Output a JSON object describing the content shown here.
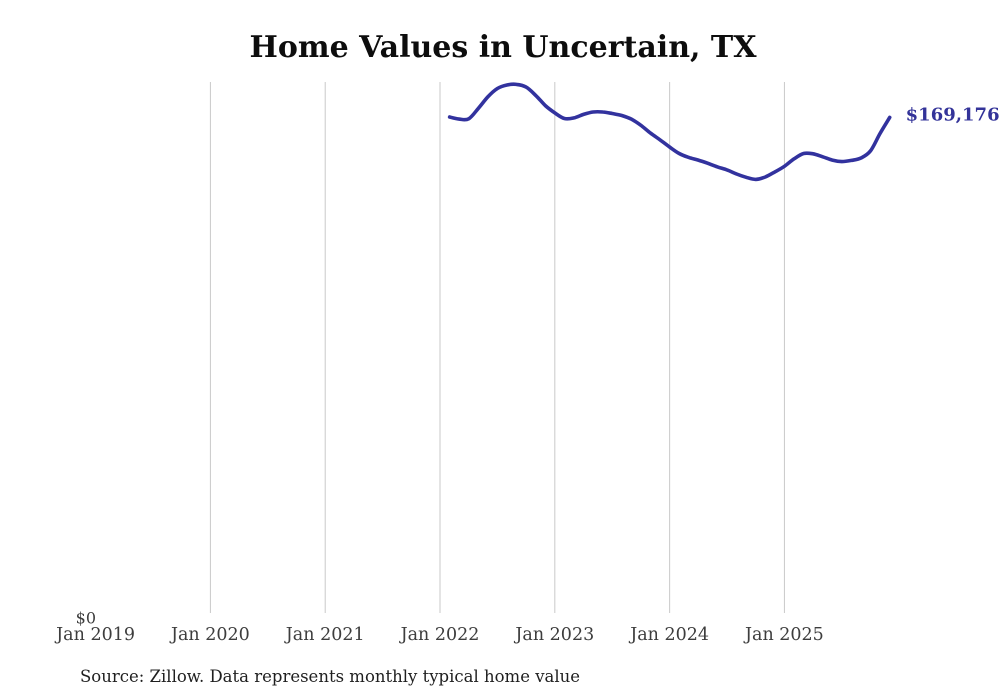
{
  "title": "Home Values in Uncertain, TX",
  "source_note": "Source: Zillow. Data represents monthly typical home value",
  "y_zero_label": "$0",
  "end_value_label": "$169,176",
  "colors": {
    "line": "#32329e",
    "end_label": "#333399",
    "gridline": "#c9c9c9",
    "axis_text": "#3d3d3d",
    "title_text": "#0d0d0d"
  },
  "x_axis": {
    "ticks": [
      {
        "label": "Jan 2019",
        "month": "2019-01",
        "gridline": false
      },
      {
        "label": "Jan 2020",
        "month": "2020-01",
        "gridline": true
      },
      {
        "label": "Jan 2021",
        "month": "2021-01",
        "gridline": true
      },
      {
        "label": "Jan 2022",
        "month": "2022-01",
        "gridline": true
      },
      {
        "label": "Jan 2023",
        "month": "2023-01",
        "gridline": true
      },
      {
        "label": "Jan 2024",
        "month": "2024-01",
        "gridline": true
      },
      {
        "label": "Jan 2025",
        "month": "2025-01",
        "gridline": true
      }
    ]
  },
  "chart_data": {
    "type": "line",
    "title": "Home Values in Uncertain, TX",
    "series_name": "Monthly typical home value ($)",
    "xlabel": "",
    "ylabel": "",
    "ylim": [
      0,
      180500
    ],
    "grid": "vertical-only",
    "legend": "none",
    "x": [
      "2022-02",
      "2022-03",
      "2022-04",
      "2022-05",
      "2022-06",
      "2022-07",
      "2022-08",
      "2022-09",
      "2022-10",
      "2022-11",
      "2022-12",
      "2023-01",
      "2023-02",
      "2023-03",
      "2023-04",
      "2023-05",
      "2023-06",
      "2023-07",
      "2023-08",
      "2023-09",
      "2023-10",
      "2023-11",
      "2023-12",
      "2024-01",
      "2024-02",
      "2024-03",
      "2024-04",
      "2024-05",
      "2024-06",
      "2024-07",
      "2024-08",
      "2024-09",
      "2024-10",
      "2024-11",
      "2024-12",
      "2025-01",
      "2025-02",
      "2025-03",
      "2025-04",
      "2025-05",
      "2025-06",
      "2025-07",
      "2025-08",
      "2025-09",
      "2025-10",
      "2025-11",
      "2025-12"
    ],
    "values": [
      169300,
      168600,
      168700,
      172200,
      176100,
      178900,
      180100,
      180300,
      179400,
      176600,
      173200,
      170700,
      168800,
      169000,
      170200,
      171000,
      171000,
      170500,
      169800,
      168600,
      166500,
      163900,
      161600,
      159200,
      157000,
      155700,
      154800,
      153700,
      152500,
      151500,
      150100,
      149000,
      148300,
      149100,
      150800,
      152700,
      155200,
      157000,
      156900,
      155900,
      154800,
      154300,
      154700,
      155500,
      157900,
      163800,
      169176
    ]
  }
}
